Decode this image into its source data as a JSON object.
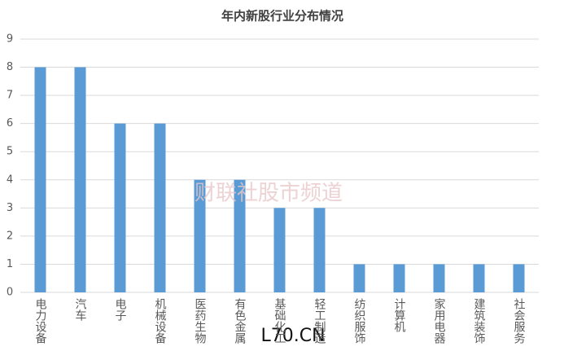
{
  "chart_data": {
    "type": "bar",
    "title": "年内新股行业分布情况",
    "categories": [
      "电力设备",
      "汽车",
      "电子",
      "机械设备",
      "医药生物",
      "有色金属",
      "基础化工",
      "轻工制造",
      "纺织服饰",
      "计算机",
      "家用电器",
      "建筑装饰",
      "社会服务"
    ],
    "values": [
      8,
      8,
      6,
      6,
      4,
      4,
      3,
      3,
      1,
      1,
      1,
      1,
      1
    ],
    "color": "#5b9bd5",
    "ylim": [
      0,
      9
    ],
    "yticks": [
      0,
      1,
      2,
      3,
      4,
      5,
      6,
      7,
      8,
      9
    ],
    "grid": true,
    "watermarks": [
      "财联社股市频道",
      "L70.CN"
    ]
  }
}
